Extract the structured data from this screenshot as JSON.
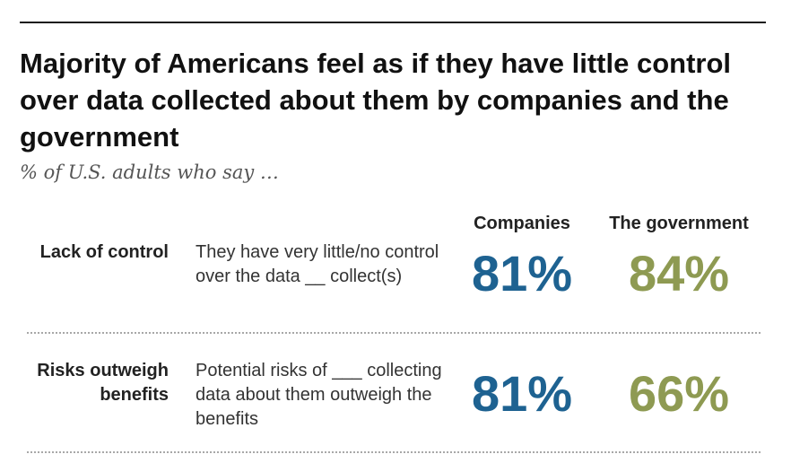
{
  "title": "Majority of Americans feel as if they have little control over data collected about them by companies and the government",
  "subtitle": "% of U.S. adults who say …",
  "colors": {
    "companies": "#1e6291",
    "government": "#8e9a52",
    "text": "#222222"
  },
  "chart_data": {
    "type": "table",
    "title": "Majority of Americans feel as if they have little control over data collected about them by companies and the government",
    "subtitle": "% of U.S. adults who say …",
    "columns": [
      "Companies",
      "The government"
    ],
    "rows": [
      {
        "label": "Lack of control",
        "description": "They have very little/no control over the data __ collect(s)",
        "companies": "81%",
        "government": "84%",
        "values": [
          81,
          84
        ]
      },
      {
        "label": "Risks outweigh benefits",
        "description": "Potential risks of ___ collecting data about them outweigh the benefits",
        "companies": "81%",
        "government": "66%",
        "values": [
          81,
          66
        ]
      }
    ],
    "unit": "%"
  }
}
